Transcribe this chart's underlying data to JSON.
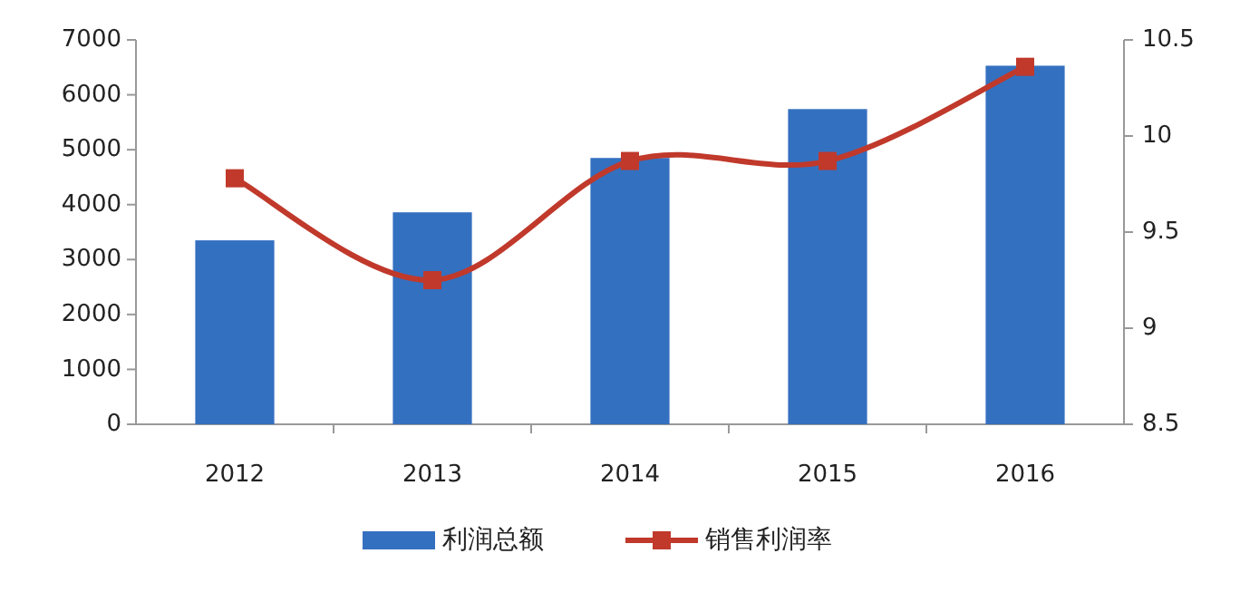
{
  "chart_data": {
    "type": "bar",
    "categories": [
      "2012",
      "2013",
      "2014",
      "2015",
      "2016"
    ],
    "series": [
      {
        "name": "利润总额",
        "color": "#3470c0",
        "values": [
          3350,
          3860,
          4850,
          5740,
          6530
        ]
      },
      {
        "name": "销售利润率",
        "type": "line",
        "axis": "y2",
        "color": "#c0392b",
        "marker": "square",
        "values": [
          9.78,
          9.25,
          9.87,
          9.87,
          10.36
        ]
      }
    ],
    "ylim": [
      0,
      7000
    ],
    "yticks": [
      0,
      1000,
      2000,
      3000,
      4000,
      5000,
      6000,
      7000
    ],
    "y2lim": [
      8.5,
      10.5
    ],
    "y2ticks": [
      8.5,
      9,
      9.5,
      10,
      10.5
    ],
    "legend": "bottom"
  }
}
